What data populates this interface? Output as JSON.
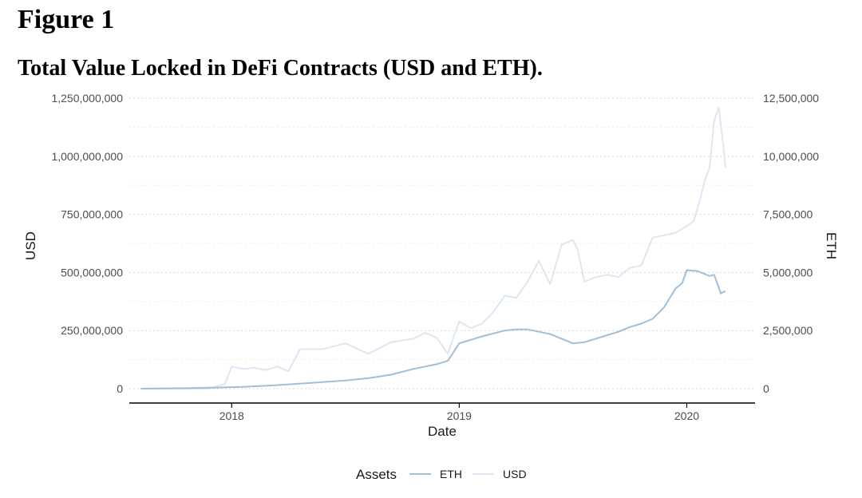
{
  "figure_label": "Figure 1",
  "chart_data": {
    "type": "line",
    "title": "Total Value Locked in DeFi Contracts (USD and ETH).",
    "xlabel": "Date",
    "ylabel": "USD",
    "y2label": "ETH",
    "x_ticks": [
      2018,
      2019,
      2020
    ],
    "x_range": [
      2017.55,
      2020.3
    ],
    "ylim": [
      0,
      1250000000
    ],
    "y2lim": [
      0,
      12500000
    ],
    "y_ticks": [
      {
        "value": 0,
        "label": "0"
      },
      {
        "value": 250000000,
        "label": "250,000,000"
      },
      {
        "value": 500000000,
        "label": "500,000,000"
      },
      {
        "value": 750000000,
        "label": "750,000,000"
      },
      {
        "value": 1000000000,
        "label": "1,000,000,000"
      },
      {
        "value": 1250000000,
        "label": "1,250,000,000"
      }
    ],
    "y2_ticks": [
      {
        "value": 0,
        "label": "0"
      },
      {
        "value": 2500000,
        "label": "2,500,000"
      },
      {
        "value": 5000000,
        "label": "5,000,000"
      },
      {
        "value": 7500000,
        "label": "7,500,000"
      },
      {
        "value": 10000000,
        "label": "10,000,000"
      },
      {
        "value": 12500000,
        "label": "12,500,000"
      }
    ],
    "grid": true,
    "legend": {
      "title": "Assets",
      "position": "bottom"
    },
    "series": [
      {
        "name": "ETH",
        "axis": "right",
        "color": "#9fbfd9",
        "x": [
          2017.6,
          2017.8,
          2017.95,
          2018.05,
          2018.2,
          2018.35,
          2018.5,
          2018.6,
          2018.7,
          2018.8,
          2018.9,
          2018.95,
          2019.0,
          2019.1,
          2019.2,
          2019.25,
          2019.3,
          2019.4,
          2019.5,
          2019.55,
          2019.6,
          2019.7,
          2019.75,
          2019.8,
          2019.85,
          2019.9,
          2019.95,
          2019.98,
          2020.0,
          2020.05,
          2020.1,
          2020.12,
          2020.15,
          2020.17
        ],
        "values": [
          0,
          20000,
          50000,
          80000,
          150000,
          250000,
          350000,
          450000,
          600000,
          850000,
          1050000,
          1200000,
          1950000,
          2250000,
          2500000,
          2550000,
          2550000,
          2350000,
          1950000,
          2000000,
          2150000,
          2450000,
          2650000,
          2800000,
          3000000,
          3500000,
          4300000,
          4550000,
          5100000,
          5050000,
          4850000,
          4900000,
          4100000,
          4200000
        ]
      },
      {
        "name": "USD",
        "axis": "left",
        "color": "#dbe7f3",
        "x": [
          2017.6,
          2017.9,
          2017.97,
          2018.0,
          2018.05,
          2018.1,
          2018.15,
          2018.2,
          2018.25,
          2018.3,
          2018.4,
          2018.5,
          2018.6,
          2018.7,
          2018.8,
          2018.85,
          2018.9,
          2018.95,
          2019.0,
          2019.05,
          2019.1,
          2019.15,
          2019.2,
          2019.25,
          2019.3,
          2019.35,
          2019.4,
          2019.45,
          2019.5,
          2019.52,
          2019.55,
          2019.6,
          2019.65,
          2019.7,
          2019.75,
          2019.8,
          2019.85,
          2019.9,
          2019.95,
          2020.0,
          2020.03,
          2020.06,
          2020.08,
          2020.1,
          2020.12,
          2020.14,
          2020.16,
          2020.17
        ],
        "values": [
          0,
          0,
          20000000,
          95000000,
          85000000,
          90000000,
          80000000,
          95000000,
          75000000,
          170000000,
          170000000,
          195000000,
          150000000,
          200000000,
          215000000,
          240000000,
          220000000,
          150000000,
          290000000,
          260000000,
          280000000,
          330000000,
          400000000,
          390000000,
          460000000,
          550000000,
          450000000,
          620000000,
          640000000,
          600000000,
          460000000,
          480000000,
          490000000,
          480000000,
          520000000,
          530000000,
          650000000,
          660000000,
          670000000,
          700000000,
          720000000,
          820000000,
          900000000,
          950000000,
          1150000000,
          1210000000,
          1050000000,
          950000000
        ]
      }
    ]
  }
}
